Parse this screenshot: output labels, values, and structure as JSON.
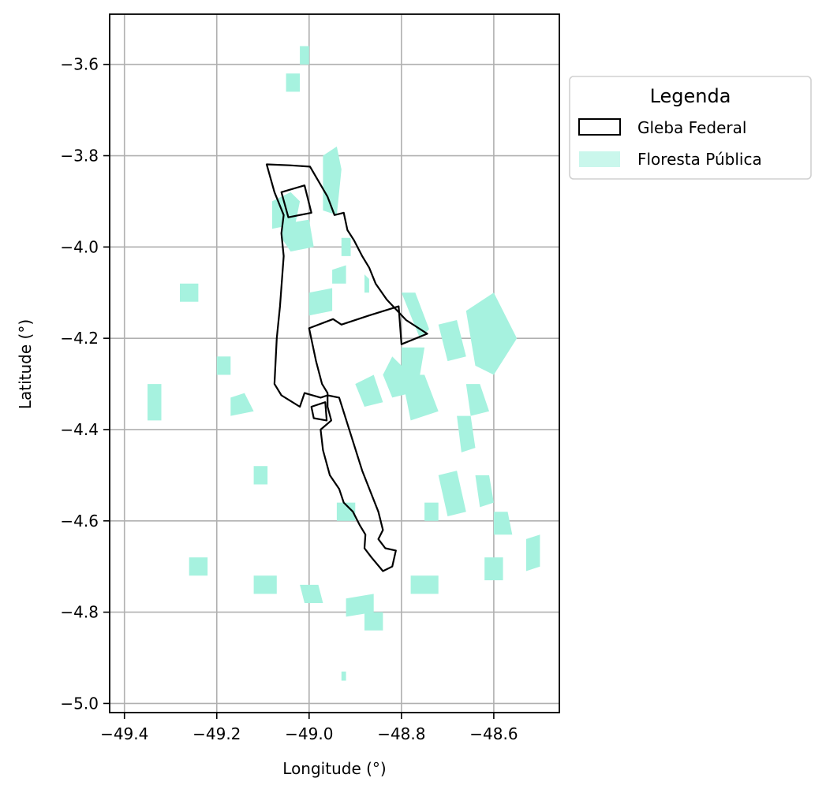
{
  "chart_data": {
    "type": "map",
    "title": "",
    "xlabel": "Longitude (°)",
    "ylabel": "Latitude (°)",
    "xlim": [
      -49.432,
      -48.458
    ],
    "ylim": [
      -5.02,
      -3.49
    ],
    "xticks": [
      -49.4,
      -49.2,
      -49.0,
      -48.8,
      -48.6
    ],
    "xtick_labels": [
      "−49.4",
      "−49.2",
      "−49.0",
      "−48.8",
      "−48.6"
    ],
    "yticks": [
      -3.6,
      -3.8,
      -4.0,
      -4.2,
      -4.4,
      -4.6,
      -4.8,
      -5.0
    ],
    "ytick_labels": [
      "−3.6",
      "−3.8",
      "−4.0",
      "−4.2",
      "−4.4",
      "−4.6",
      "−4.8",
      "−5.0"
    ],
    "grid": true,
    "legend": {
      "title": "Legenda",
      "placement": "outside-upper-right",
      "entries": [
        {
          "label": "Gleba Federal",
          "style": "outline",
          "color": "#000000"
        },
        {
          "label": "Floresta Pública",
          "style": "fill",
          "color": "#a6f2df"
        }
      ]
    },
    "colors": {
      "forest": "#a6f2df",
      "gleba": "#000000",
      "grid": "#b0b0b0"
    },
    "gleba_polygons": [
      {
        "name": "main",
        "coords": [
          [
            -49.092,
            -3.819
          ],
          [
            -49.042,
            -3.821
          ],
          [
            -48.998,
            -3.824
          ],
          [
            -48.96,
            -3.89
          ],
          [
            -48.945,
            -3.93
          ],
          [
            -48.925,
            -3.925
          ],
          [
            -48.917,
            -3.963
          ],
          [
            -48.903,
            -3.985
          ],
          [
            -48.885,
            -4.02
          ],
          [
            -48.87,
            -4.045
          ],
          [
            -48.856,
            -4.08
          ],
          [
            -48.832,
            -4.115
          ],
          [
            -48.79,
            -4.16
          ],
          [
            -48.744,
            -4.19
          ],
          [
            -48.8,
            -4.213
          ],
          [
            -48.806,
            -4.13
          ],
          [
            -48.87,
            -4.15
          ],
          [
            -48.93,
            -4.17
          ],
          [
            -48.948,
            -4.158
          ],
          [
            -49.0,
            -4.178
          ],
          [
            -48.985,
            -4.25
          ],
          [
            -48.972,
            -4.3
          ],
          [
            -48.96,
            -4.32
          ],
          [
            -48.96,
            -4.35
          ],
          [
            -48.952,
            -4.38
          ],
          [
            -48.975,
            -4.4
          ],
          [
            -48.97,
            -4.445
          ],
          [
            -48.955,
            -4.5
          ],
          [
            -48.935,
            -4.53
          ],
          [
            -48.925,
            -4.56
          ],
          [
            -48.905,
            -4.58
          ],
          [
            -48.89,
            -4.61
          ],
          [
            -48.878,
            -4.63
          ],
          [
            -48.88,
            -4.66
          ],
          [
            -48.865,
            -4.68
          ],
          [
            -48.84,
            -4.71
          ],
          [
            -48.82,
            -4.7
          ],
          [
            -48.812,
            -4.665
          ],
          [
            -48.835,
            -4.66
          ],
          [
            -48.85,
            -4.64
          ],
          [
            -48.84,
            -4.62
          ],
          [
            -48.85,
            -4.58
          ],
          [
            -48.885,
            -4.49
          ],
          [
            -48.935,
            -4.33
          ],
          [
            -48.96,
            -4.325
          ],
          [
            -48.975,
            -4.33
          ],
          [
            -49.01,
            -4.32
          ],
          [
            -49.02,
            -4.35
          ],
          [
            -49.06,
            -4.325
          ],
          [
            -49.075,
            -4.3
          ],
          [
            -49.07,
            -4.2
          ],
          [
            -49.063,
            -4.13
          ],
          [
            -49.058,
            -4.06
          ],
          [
            -49.055,
            -4.02
          ],
          [
            -49.06,
            -3.97
          ],
          [
            -49.055,
            -3.93
          ],
          [
            -49.075,
            -3.88
          ],
          [
            -49.092,
            -3.819
          ]
        ]
      },
      {
        "name": "north-inset",
        "coords": [
          [
            -49.06,
            -3.88
          ],
          [
            -49.01,
            -3.865
          ],
          [
            -48.995,
            -3.925
          ],
          [
            -49.045,
            -3.935
          ],
          [
            -49.06,
            -3.88
          ]
        ]
      },
      {
        "name": "mid-inset",
        "coords": [
          [
            -48.995,
            -4.35
          ],
          [
            -48.965,
            -4.34
          ],
          [
            -48.962,
            -4.38
          ],
          [
            -48.99,
            -4.375
          ],
          [
            -48.995,
            -4.35
          ]
        ]
      }
    ],
    "forest_polygons": [
      [
        [
          -48.97,
          -3.8
        ],
        [
          -48.94,
          -3.78
        ],
        [
          -48.93,
          -3.83
        ],
        [
          -48.94,
          -3.93
        ],
        [
          -48.97,
          -3.92
        ]
      ],
      [
        [
          -49.08,
          -3.9
        ],
        [
          -49.04,
          -3.88
        ],
        [
          -49.02,
          -3.9
        ],
        [
          -49.03,
          -3.95
        ],
        [
          -49.08,
          -3.96
        ]
      ],
      [
        [
          -49.06,
          -3.95
        ],
        [
          -49.0,
          -3.94
        ],
        [
          -48.99,
          -4.0
        ],
        [
          -49.04,
          -4.01
        ],
        [
          -49.06,
          -3.98
        ]
      ],
      [
        [
          -48.93,
          -3.98
        ],
        [
          -48.91,
          -3.98
        ],
        [
          -48.91,
          -4.02
        ],
        [
          -48.93,
          -4.02
        ]
      ],
      [
        [
          -48.95,
          -4.05
        ],
        [
          -48.92,
          -4.04
        ],
        [
          -48.92,
          -4.08
        ],
        [
          -48.95,
          -4.08
        ]
      ],
      [
        [
          -49.0,
          -4.1
        ],
        [
          -48.95,
          -4.09
        ],
        [
          -48.95,
          -4.14
        ],
        [
          -49.0,
          -4.15
        ]
      ],
      [
        [
          -48.88,
          -4.06
        ],
        [
          -48.87,
          -4.07
        ],
        [
          -48.87,
          -4.1
        ],
        [
          -48.88,
          -4.1
        ]
      ],
      [
        [
          -48.8,
          -4.1
        ],
        [
          -48.77,
          -4.1
        ],
        [
          -48.74,
          -4.18
        ],
        [
          -48.76,
          -4.2
        ]
      ],
      [
        [
          -48.8,
          -4.22
        ],
        [
          -48.75,
          -4.22
        ],
        [
          -48.76,
          -4.28
        ],
        [
          -48.8,
          -4.29
        ]
      ],
      [
        [
          -48.72,
          -4.17
        ],
        [
          -48.68,
          -4.16
        ],
        [
          -48.66,
          -4.24
        ],
        [
          -48.7,
          -4.25
        ]
      ],
      [
        [
          -48.66,
          -4.14
        ],
        [
          -48.6,
          -4.1
        ],
        [
          -48.55,
          -4.2
        ],
        [
          -48.6,
          -4.28
        ],
        [
          -48.64,
          -4.26
        ]
      ],
      [
        [
          -48.82,
          -4.24
        ],
        [
          -48.8,
          -4.26
        ],
        [
          -48.78,
          -4.32
        ],
        [
          -48.82,
          -4.33
        ],
        [
          -48.84,
          -4.28
        ]
      ],
      [
        [
          -48.8,
          -4.28
        ],
        [
          -48.75,
          -4.28
        ],
        [
          -48.72,
          -4.36
        ],
        [
          -48.78,
          -4.38
        ]
      ],
      [
        [
          -48.9,
          -4.3
        ],
        [
          -48.86,
          -4.28
        ],
        [
          -48.84,
          -4.34
        ],
        [
          -48.88,
          -4.35
        ]
      ],
      [
        [
          -49.17,
          -4.33
        ],
        [
          -49.14,
          -4.32
        ],
        [
          -49.12,
          -4.36
        ],
        [
          -49.17,
          -4.37
        ]
      ],
      [
        [
          -48.66,
          -4.3
        ],
        [
          -48.63,
          -4.3
        ],
        [
          -48.61,
          -4.36
        ],
        [
          -48.65,
          -4.37
        ]
      ],
      [
        [
          -48.68,
          -4.37
        ],
        [
          -48.65,
          -4.37
        ],
        [
          -48.64,
          -4.44
        ],
        [
          -48.67,
          -4.45
        ]
      ],
      [
        [
          -48.72,
          -4.5
        ],
        [
          -48.68,
          -4.49
        ],
        [
          -48.66,
          -4.58
        ],
        [
          -48.7,
          -4.59
        ]
      ],
      [
        [
          -48.64,
          -4.5
        ],
        [
          -48.61,
          -4.5
        ],
        [
          -48.6,
          -4.56
        ],
        [
          -48.63,
          -4.57
        ]
      ],
      [
        [
          -48.75,
          -4.56
        ],
        [
          -48.72,
          -4.56
        ],
        [
          -48.72,
          -4.6
        ],
        [
          -48.75,
          -4.6
        ]
      ],
      [
        [
          -48.6,
          -4.58
        ],
        [
          -48.57,
          -4.58
        ],
        [
          -48.56,
          -4.63
        ],
        [
          -48.6,
          -4.63
        ]
      ],
      [
        [
          -48.53,
          -4.64
        ],
        [
          -48.5,
          -4.63
        ],
        [
          -48.5,
          -4.7
        ],
        [
          -48.53,
          -4.71
        ]
      ],
      [
        [
          -48.62,
          -4.68
        ],
        [
          -48.58,
          -4.68
        ],
        [
          -48.58,
          -4.73
        ],
        [
          -48.62,
          -4.73
        ]
      ],
      [
        [
          -48.78,
          -4.72
        ],
        [
          -48.72,
          -4.72
        ],
        [
          -48.72,
          -4.76
        ],
        [
          -48.78,
          -4.76
        ]
      ],
      [
        [
          -48.92,
          -4.77
        ],
        [
          -48.86,
          -4.76
        ],
        [
          -48.86,
          -4.8
        ],
        [
          -48.92,
          -4.81
        ]
      ],
      [
        [
          -48.88,
          -4.8
        ],
        [
          -48.84,
          -4.8
        ],
        [
          -48.84,
          -4.84
        ],
        [
          -48.88,
          -4.84
        ]
      ],
      [
        [
          -49.02,
          -4.74
        ],
        [
          -48.98,
          -4.74
        ],
        [
          -48.97,
          -4.78
        ],
        [
          -49.01,
          -4.78
        ]
      ],
      [
        [
          -49.12,
          -4.72
        ],
        [
          -49.07,
          -4.72
        ],
        [
          -49.07,
          -4.76
        ],
        [
          -49.12,
          -4.76
        ]
      ],
      [
        [
          -49.26,
          -4.68
        ],
        [
          -49.22,
          -4.68
        ],
        [
          -49.22,
          -4.72
        ],
        [
          -49.26,
          -4.72
        ]
      ],
      [
        [
          -49.35,
          -4.3
        ],
        [
          -49.32,
          -4.3
        ],
        [
          -49.32,
          -4.38
        ],
        [
          -49.35,
          -4.38
        ]
      ],
      [
        [
          -49.2,
          -4.24
        ],
        [
          -49.17,
          -4.24
        ],
        [
          -49.17,
          -4.28
        ],
        [
          -49.2,
          -4.28
        ]
      ],
      [
        [
          -49.28,
          -4.08
        ],
        [
          -49.24,
          -4.08
        ],
        [
          -49.24,
          -4.12
        ],
        [
          -49.28,
          -4.12
        ]
      ],
      [
        [
          -49.12,
          -4.48
        ],
        [
          -49.09,
          -4.48
        ],
        [
          -49.09,
          -4.52
        ],
        [
          -49.12,
          -4.52
        ]
      ],
      [
        [
          -49.05,
          -3.62
        ],
        [
          -49.02,
          -3.62
        ],
        [
          -49.02,
          -3.66
        ],
        [
          -49.05,
          -3.66
        ]
      ],
      [
        [
          -49.02,
          -3.56
        ],
        [
          -49.0,
          -3.56
        ],
        [
          -49.0,
          -3.6
        ],
        [
          -49.02,
          -3.6
        ]
      ],
      [
        [
          -48.94,
          -4.56
        ],
        [
          -48.9,
          -4.56
        ],
        [
          -48.9,
          -4.6
        ],
        [
          -48.94,
          -4.6
        ]
      ],
      [
        [
          -48.93,
          -4.93
        ],
        [
          -48.92,
          -4.93
        ],
        [
          -48.92,
          -4.95
        ],
        [
          -48.93,
          -4.95
        ]
      ]
    ]
  }
}
